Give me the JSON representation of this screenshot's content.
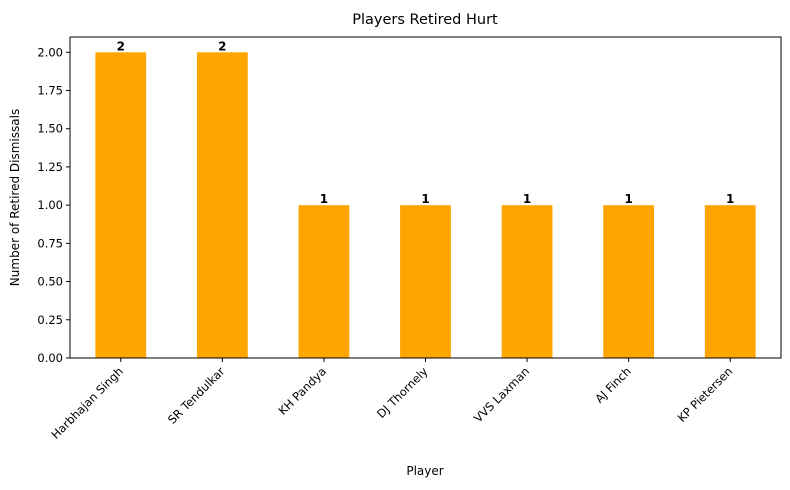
{
  "chart_data": {
    "type": "bar",
    "title": "Players Retired Hurt",
    "xlabel": "Player",
    "ylabel": "Number of Retired Dismissals",
    "categories": [
      "Harbhajan Singh",
      "SR Tendulkar",
      "KH Pandya",
      "DJ Thornely",
      "VVS Laxman",
      "AJ Finch",
      "KP Pietersen"
    ],
    "values": [
      2,
      2,
      1,
      1,
      1,
      1,
      1
    ],
    "data_labels": [
      "2",
      "2",
      "1",
      "1",
      "1",
      "1",
      "1"
    ],
    "ylim": [
      0,
      2.1
    ],
    "yticks": [
      0,
      0.25,
      0.5,
      0.75,
      1.0,
      1.25,
      1.5,
      1.75,
      2.0
    ],
    "ytick_labels": [
      "0.00",
      "0.25",
      "0.50",
      "0.75",
      "1.00",
      "1.25",
      "1.50",
      "1.75",
      "2.00"
    ],
    "bar_color": "#ffa500",
    "grid": false,
    "legend": false
  }
}
